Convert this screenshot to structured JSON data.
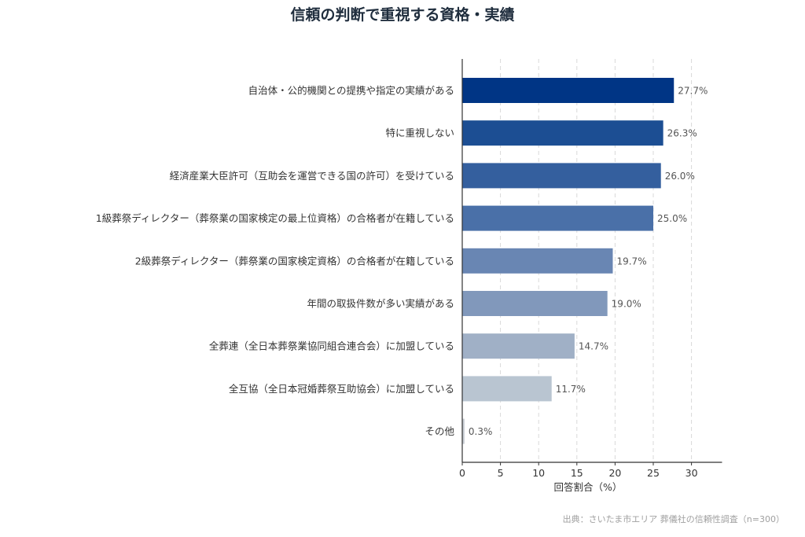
{
  "chart_data": {
    "type": "bar",
    "orientation": "horizontal",
    "title": "信頼の判断で重視する資格・実績",
    "xlabel": "回答割合（%）",
    "ylabel": "",
    "xlim": [
      0,
      34
    ],
    "xticks": [
      0,
      5,
      10,
      15,
      20,
      25,
      30
    ],
    "grid": "vertical dashed",
    "categories": [
      "自治体・公的機関との提携や指定の実績がある",
      "特に重視しない",
      "経済産業大臣許可（互助会を運営できる国の許可）を受けている",
      "1級葬祭ディレクター（葬祭業の国家検定の最上位資格）の合格者が在籍している",
      "2級葬祭ディレクター（葬祭業の国家検定資格）の合格者が在籍している",
      "年間の取扱件数が多い実績がある",
      "全葬連（全日本葬祭業協同組合連合会）に加盟している",
      "全互協（全日本冠婚葬祭互助協会）に加盟している",
      "その他"
    ],
    "values": [
      27.7,
      26.3,
      26.0,
      25.0,
      19.7,
      19.0,
      14.7,
      11.7,
      0.3
    ],
    "value_labels": [
      "27.7%",
      "26.3%",
      "26.0%",
      "25.0%",
      "19.7%",
      "19.0%",
      "14.7%",
      "11.7%",
      "0.3%"
    ],
    "colors": [
      "#003585",
      "#1c4e93",
      "#345f9e",
      "#4a70a8",
      "#6986b3",
      "#8198bb",
      "#a0b0c6",
      "#b9c5d1",
      "#c9ced4"
    ]
  },
  "source": "出典：さいたま市エリア 葬儀社の信頼性調査（n=300）"
}
